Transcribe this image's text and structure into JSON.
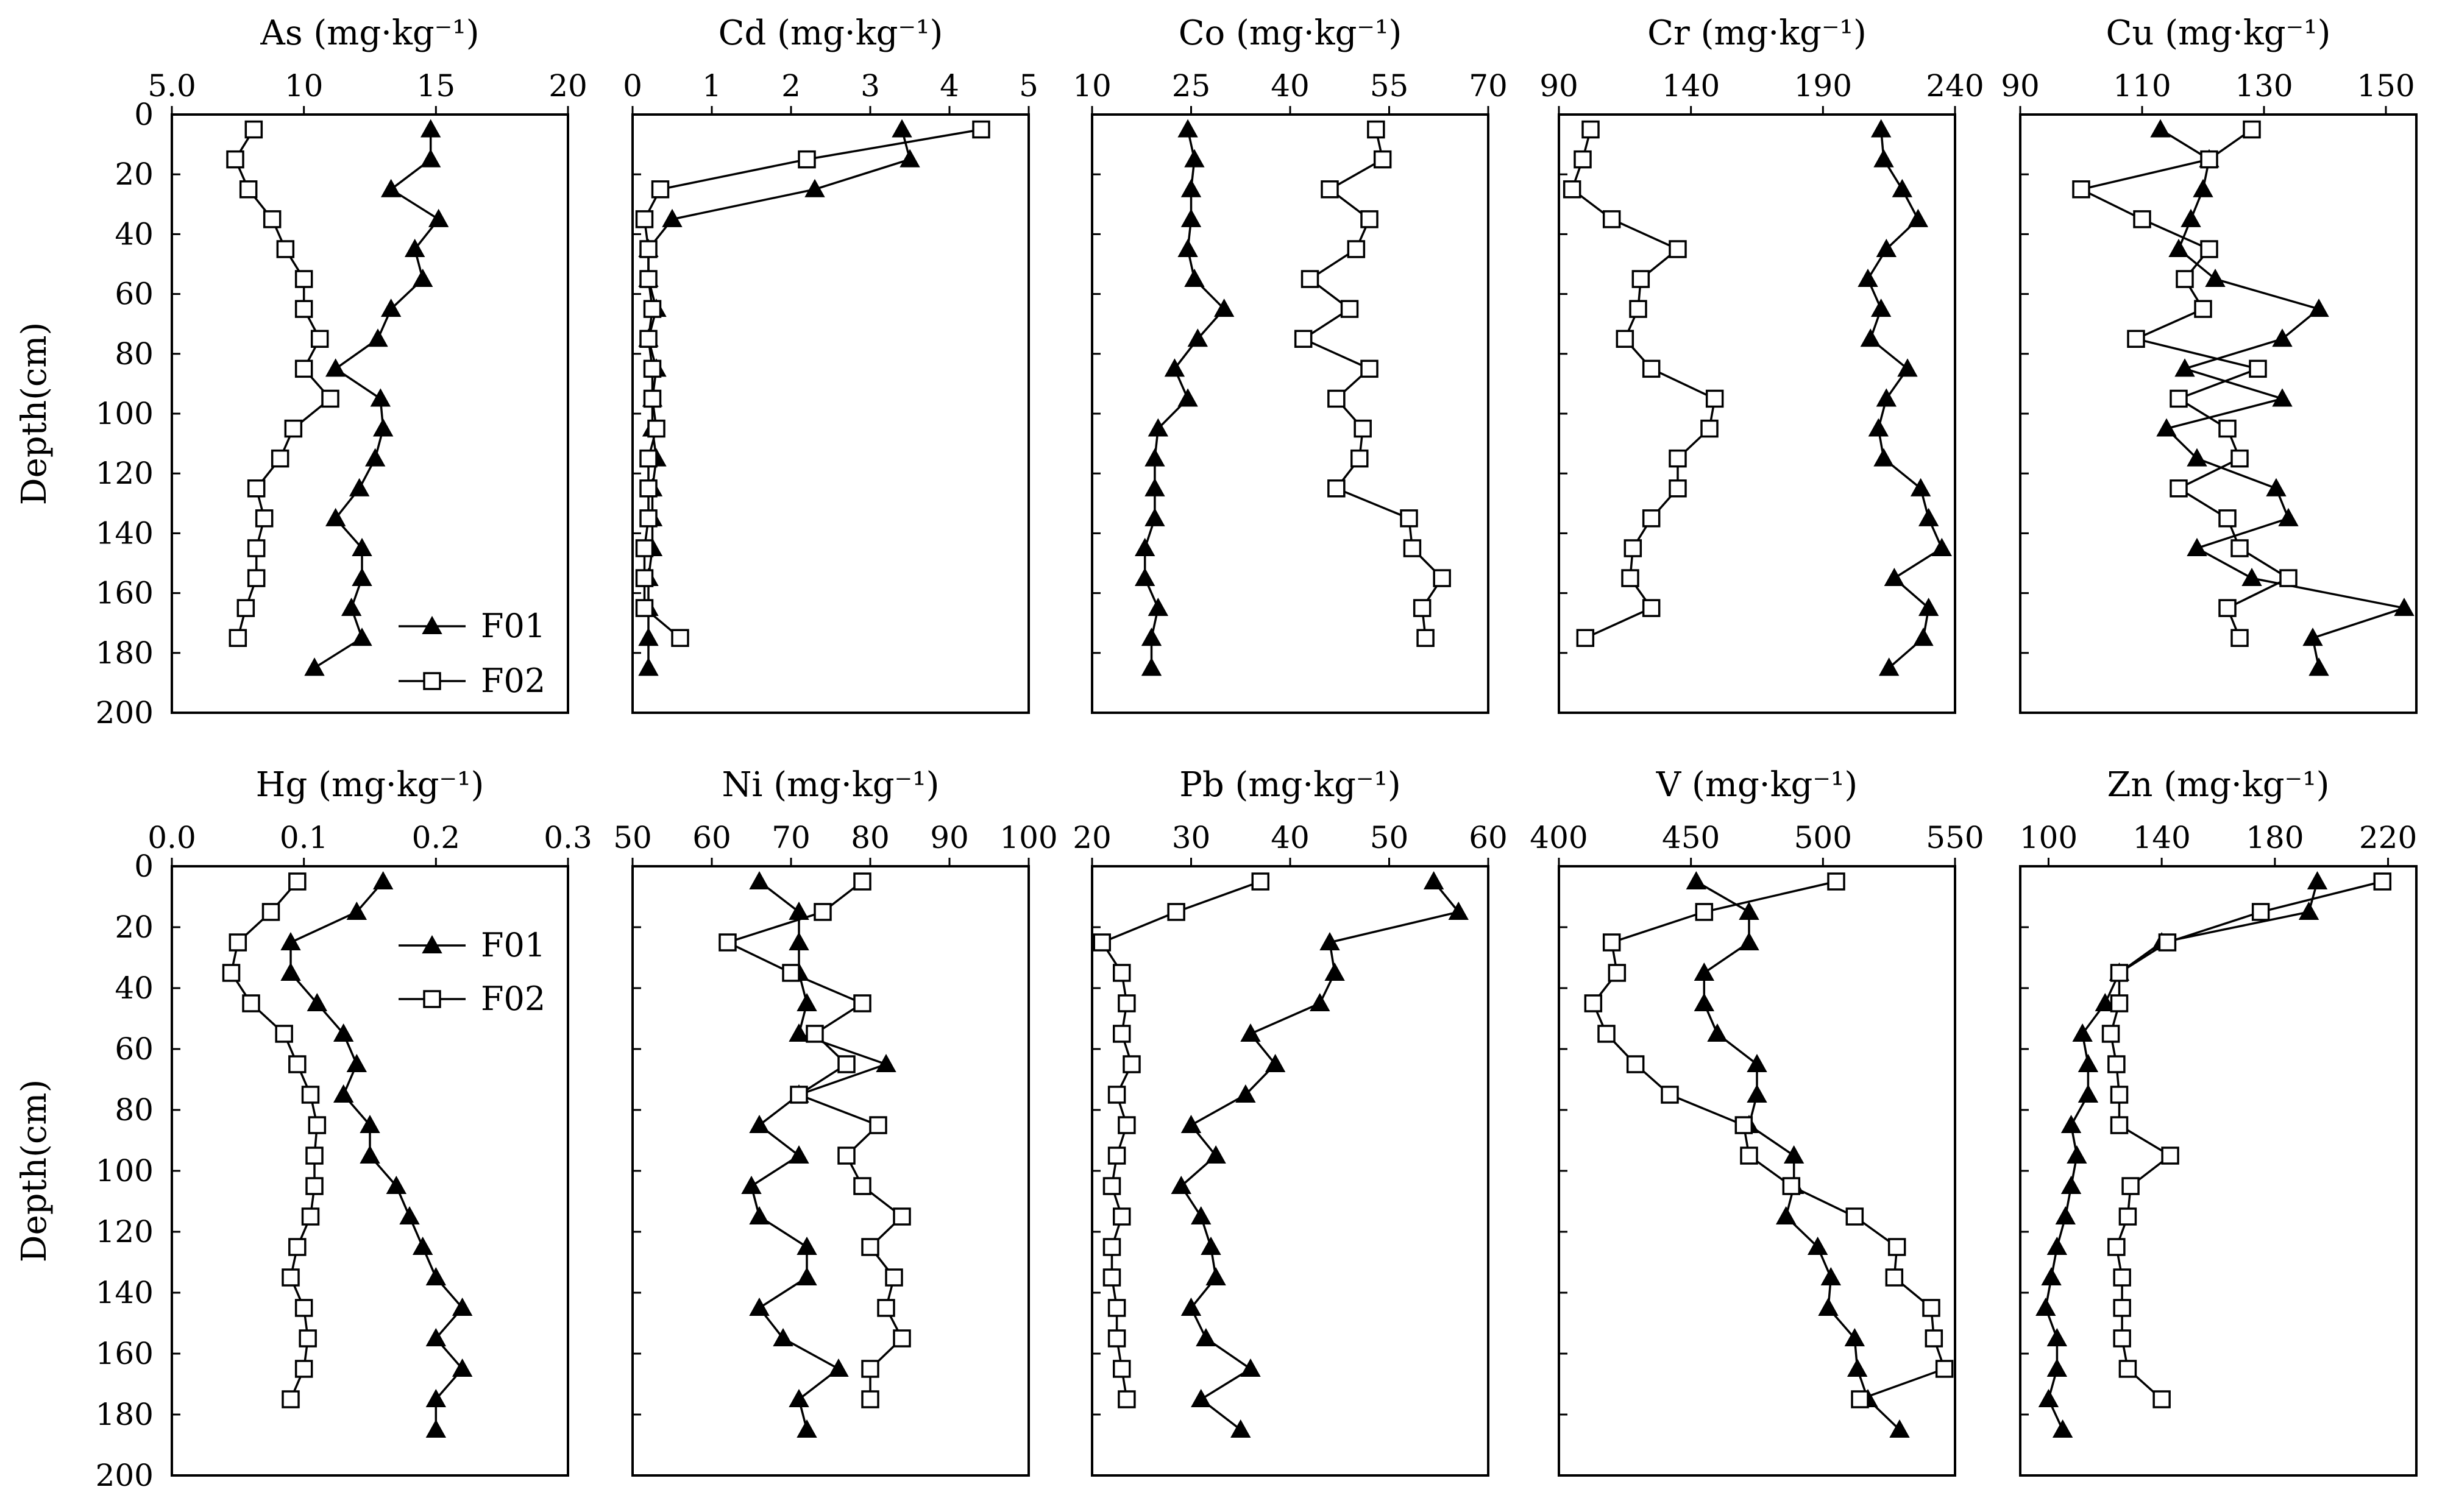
{
  "legend": {
    "entries": [
      {
        "name": "F01",
        "marker": "filled-triangle"
      },
      {
        "name": "F02",
        "marker": "open-square"
      }
    ]
  },
  "chart_data": [
    {
      "type": "line",
      "title": "As (mg·kg⁻¹)",
      "ylabel": "Depth(cm)",
      "xlim": [
        5,
        20
      ],
      "ylim": [
        0,
        200
      ],
      "xticks": [
        "5.0",
        "10",
        "15",
        "20"
      ],
      "yticks": [
        "0",
        "20",
        "40",
        "60",
        "80",
        "100",
        "120",
        "140",
        "160",
        "180",
        "200"
      ],
      "legend_position": "bottom-right",
      "series": [
        {
          "name": "F01",
          "marker": "triangle",
          "x": [
            14.8,
            14.8,
            13.3,
            15.1,
            14.2,
            14.5,
            13.3,
            12.8,
            11.2,
            12.9,
            13.0,
            12.7,
            12.1,
            11.2,
            12.2,
            12.2,
            11.8,
            12.2,
            10.4
          ],
          "y": [
            5,
            15,
            25,
            35,
            45,
            55,
            65,
            75,
            85,
            95,
            105,
            115,
            125,
            135,
            145,
            155,
            165,
            175,
            185
          ]
        },
        {
          "name": "F02",
          "marker": "square",
          "x": [
            8.1,
            7.4,
            7.9,
            8.8,
            9.3,
            10.0,
            10.0,
            10.6,
            10.0,
            11.0,
            9.6,
            9.1,
            8.2,
            8.5,
            8.2,
            8.2,
            7.8,
            7.5
          ],
          "y": [
            5,
            15,
            25,
            35,
            45,
            55,
            65,
            75,
            85,
            95,
            105,
            115,
            125,
            135,
            145,
            155,
            165,
            175
          ]
        }
      ]
    },
    {
      "type": "line",
      "title": "Cd (mg·kg⁻¹)",
      "ylabel": "",
      "xlim": [
        0,
        5
      ],
      "ylim": [
        0,
        200
      ],
      "xticks": [
        "0",
        "1",
        "2",
        "3",
        "4",
        "5"
      ],
      "yticks": [],
      "series": [
        {
          "name": "F01",
          "marker": "triangle",
          "x": [
            3.4,
            3.5,
            2.3,
            0.5,
            0.2,
            0.2,
            0.3,
            0.2,
            0.3,
            0.25,
            0.25,
            0.3,
            0.25,
            0.25,
            0.25,
            0.2,
            0.2,
            0.2,
            0.2
          ],
          "y": [
            5,
            15,
            25,
            35,
            45,
            55,
            65,
            75,
            85,
            95,
            105,
            115,
            125,
            135,
            145,
            155,
            165,
            175,
            185
          ]
        },
        {
          "name": "F02",
          "marker": "square",
          "x": [
            4.4,
            2.2,
            0.35,
            0.15,
            0.2,
            0.2,
            0.25,
            0.2,
            0.25,
            0.25,
            0.3,
            0.2,
            0.2,
            0.2,
            0.15,
            0.15,
            0.15,
            0.6
          ],
          "y": [
            5,
            15,
            25,
            35,
            45,
            55,
            65,
            75,
            85,
            95,
            105,
            115,
            125,
            135,
            145,
            155,
            165,
            175
          ]
        }
      ]
    },
    {
      "type": "line",
      "title": "Co (mg·kg⁻¹)",
      "ylabel": "",
      "xlim": [
        10,
        70
      ],
      "ylim": [
        0,
        200
      ],
      "xticks": [
        "10",
        "25",
        "40",
        "55",
        "70"
      ],
      "yticks": [],
      "series": [
        {
          "name": "F01",
          "marker": "triangle",
          "x": [
            24.5,
            25.5,
            25,
            25,
            24.5,
            25.5,
            30,
            26,
            22.5,
            24.5,
            20,
            19.5,
            19.5,
            19.5,
            18,
            18,
            20,
            19,
            19
          ],
          "y": [
            5,
            15,
            25,
            35,
            45,
            55,
            65,
            75,
            85,
            95,
            105,
            115,
            125,
            135,
            145,
            155,
            165,
            175,
            185
          ]
        },
        {
          "name": "F02",
          "marker": "square",
          "x": [
            53,
            54,
            46,
            52,
            50,
            43,
            49,
            42,
            52,
            47,
            51,
            50.5,
            47,
            58,
            58.5,
            63,
            60,
            60.5
          ],
          "y": [
            5,
            15,
            25,
            35,
            45,
            55,
            65,
            75,
            85,
            95,
            105,
            115,
            125,
            135,
            145,
            155,
            165,
            175
          ]
        }
      ]
    },
    {
      "type": "line",
      "title": "Cr (mg·kg⁻¹)",
      "ylabel": "",
      "xlim": [
        90,
        240
      ],
      "ylim": [
        0,
        200
      ],
      "xticks": [
        "90",
        "140",
        "190",
        "240"
      ],
      "yticks": [],
      "series": [
        {
          "name": "F01",
          "marker": "triangle",
          "x": [
            212,
            213,
            220,
            226,
            214,
            207,
            212,
            208,
            222,
            214,
            211,
            213,
            227,
            230,
            235,
            217,
            230,
            228,
            215
          ],
          "y": [
            5,
            15,
            25,
            35,
            45,
            55,
            65,
            75,
            85,
            95,
            105,
            115,
            125,
            135,
            145,
            155,
            165,
            175,
            185
          ]
        },
        {
          "name": "F02",
          "marker": "square",
          "x": [
            102,
            99,
            95,
            110,
            135,
            121,
            120,
            115,
            125,
            149,
            147,
            135,
            135,
            125,
            118,
            117,
            125,
            100
          ],
          "y": [
            5,
            15,
            25,
            35,
            45,
            55,
            65,
            75,
            85,
            95,
            105,
            115,
            125,
            135,
            145,
            155,
            165,
            175
          ]
        }
      ]
    },
    {
      "type": "line",
      "title": "Cu (mg·kg⁻¹)",
      "ylabel": "",
      "xlim": [
        90,
        155
      ],
      "ylim": [
        0,
        200
      ],
      "xticks": [
        "90",
        "110",
        "130",
        "150"
      ],
      "yticks": [],
      "series": [
        {
          "name": "F01",
          "marker": "triangle",
          "x": [
            113,
            121,
            120,
            118,
            116,
            122,
            139,
            133,
            117,
            133,
            114,
            119,
            132,
            134,
            119,
            128,
            153,
            138,
            139
          ],
          "y": [
            5,
            15,
            25,
            35,
            45,
            55,
            65,
            75,
            85,
            95,
            105,
            115,
            125,
            135,
            145,
            155,
            165,
            175,
            185
          ]
        },
        {
          "name": "F02",
          "marker": "square",
          "x": [
            128,
            121,
            100,
            110,
            121,
            117,
            120,
            109,
            129,
            116,
            124,
            126,
            116,
            124,
            126,
            134,
            124,
            126
          ],
          "y": [
            5,
            15,
            25,
            35,
            45,
            55,
            65,
            75,
            85,
            95,
            105,
            115,
            125,
            135,
            145,
            155,
            165,
            175
          ]
        }
      ]
    },
    {
      "type": "line",
      "title": "Hg (mg·kg⁻¹)",
      "ylabel": "Depth(cm)",
      "xlim": [
        0,
        0.3
      ],
      "ylim": [
        0,
        200
      ],
      "xticks": [
        "0.0",
        "0.1",
        "0.2",
        "0.3"
      ],
      "yticks": [
        "0",
        "20",
        "40",
        "60",
        "80",
        "100",
        "120",
        "140",
        "160",
        "180",
        "200"
      ],
      "legend_position": "top-right",
      "series": [
        {
          "name": "F01",
          "marker": "triangle",
          "x": [
            0.16,
            0.14,
            0.09,
            0.09,
            0.11,
            0.13,
            0.14,
            0.13,
            0.15,
            0.15,
            0.17,
            0.18,
            0.19,
            0.2,
            0.22,
            0.2,
            0.22,
            0.2,
            0.2
          ],
          "y": [
            5,
            15,
            25,
            35,
            45,
            55,
            65,
            75,
            85,
            95,
            105,
            115,
            125,
            135,
            145,
            155,
            165,
            175,
            185
          ]
        },
        {
          "name": "F02",
          "marker": "square",
          "x": [
            0.095,
            0.075,
            0.05,
            0.045,
            0.06,
            0.085,
            0.095,
            0.105,
            0.11,
            0.108,
            0.108,
            0.105,
            0.095,
            0.09,
            0.1,
            0.103,
            0.1,
            0.09
          ],
          "y": [
            5,
            15,
            25,
            35,
            45,
            55,
            65,
            75,
            85,
            95,
            105,
            115,
            125,
            135,
            145,
            155,
            165,
            175
          ]
        }
      ]
    },
    {
      "type": "line",
      "title": "Ni (mg·kg⁻¹)",
      "ylabel": "",
      "xlim": [
        50,
        100
      ],
      "ylim": [
        0,
        200
      ],
      "xticks": [
        "50",
        "60",
        "70",
        "80",
        "90",
        "100"
      ],
      "yticks": [],
      "series": [
        {
          "name": "F01",
          "marker": "triangle",
          "x": [
            66,
            71,
            71,
            71,
            72,
            71,
            82,
            71,
            66,
            71,
            65,
            66,
            72,
            72,
            66,
            69,
            76,
            71,
            72
          ],
          "y": [
            5,
            15,
            25,
            35,
            45,
            55,
            65,
            75,
            85,
            95,
            105,
            115,
            125,
            135,
            145,
            155,
            165,
            175,
            185
          ]
        },
        {
          "name": "F02",
          "marker": "square",
          "x": [
            79,
            74,
            62,
            70,
            79,
            73,
            77,
            71,
            81,
            77,
            79,
            84,
            80,
            83,
            82,
            84,
            80,
            80
          ],
          "y": [
            5,
            15,
            25,
            35,
            45,
            55,
            65,
            75,
            85,
            95,
            105,
            115,
            125,
            135,
            145,
            155,
            165,
            175
          ]
        }
      ]
    },
    {
      "type": "line",
      "title": "Pb (mg·kg⁻¹)",
      "ylabel": "",
      "xlim": [
        20,
        60
      ],
      "ylim": [
        0,
        200
      ],
      "xticks": [
        "20",
        "30",
        "40",
        "50",
        "60"
      ],
      "yticks": [],
      "series": [
        {
          "name": "F01",
          "marker": "triangle",
          "x": [
            54.5,
            57,
            44,
            44.5,
            43,
            36,
            38.5,
            35.5,
            30,
            32.5,
            29,
            31,
            32,
            32.5,
            30,
            31.5,
            36,
            31,
            35
          ],
          "y": [
            5,
            15,
            25,
            35,
            45,
            55,
            65,
            75,
            85,
            95,
            105,
            115,
            125,
            135,
            145,
            155,
            165,
            175,
            185
          ]
        },
        {
          "name": "F02",
          "marker": "square",
          "x": [
            37,
            28.5,
            21,
            23,
            23.5,
            23,
            24,
            22.5,
            23.5,
            22.5,
            22,
            23,
            22,
            22,
            22.5,
            22.5,
            23,
            23.5
          ],
          "y": [
            5,
            15,
            25,
            35,
            45,
            55,
            65,
            75,
            85,
            95,
            105,
            115,
            125,
            135,
            145,
            155,
            165,
            175
          ]
        }
      ]
    },
    {
      "type": "line",
      "title": "V (mg·kg⁻¹)",
      "ylabel": "",
      "xlim": [
        400,
        550
      ],
      "ylim": [
        0,
        200
      ],
      "xticks": [
        "400",
        "450",
        "500",
        "550"
      ],
      "yticks": [],
      "series": [
        {
          "name": "F01",
          "marker": "triangle",
          "x": [
            452,
            472,
            472,
            455,
            455,
            460,
            475,
            475,
            472,
            489,
            489,
            486,
            498,
            503,
            502,
            512,
            513,
            517,
            529
          ],
          "y": [
            5,
            15,
            25,
            35,
            45,
            55,
            65,
            75,
            85,
            95,
            105,
            115,
            125,
            135,
            145,
            155,
            165,
            175,
            185
          ]
        },
        {
          "name": "F02",
          "marker": "square",
          "x": [
            505,
            455,
            420,
            422,
            413,
            418,
            429,
            442,
            470,
            472,
            488,
            512,
            528,
            527,
            541,
            542,
            546,
            514
          ],
          "y": [
            5,
            15,
            25,
            35,
            45,
            55,
            65,
            75,
            85,
            95,
            105,
            115,
            125,
            135,
            145,
            155,
            165,
            175
          ]
        }
      ]
    },
    {
      "type": "line",
      "title": "Zn (mg·kg⁻¹)",
      "ylabel": "",
      "xlim": [
        90,
        230
      ],
      "ylim": [
        0,
        200
      ],
      "xticks": [
        "100",
        "140",
        "180",
        "220"
      ],
      "yticks": [],
      "series": [
        {
          "name": "F01",
          "marker": "triangle",
          "x": [
            195,
            192,
            140,
            125,
            120,
            112,
            114,
            114,
            108,
            110,
            108,
            106,
            103,
            101,
            99,
            103,
            103,
            100,
            105
          ],
          "y": [
            5,
            15,
            25,
            35,
            45,
            55,
            65,
            75,
            85,
            95,
            105,
            115,
            125,
            135,
            145,
            155,
            165,
            175,
            185
          ]
        },
        {
          "name": "F02",
          "marker": "square",
          "x": [
            218,
            175,
            142,
            125,
            125,
            122,
            124,
            125,
            125,
            143,
            129,
            128,
            124,
            126,
            126,
            126,
            128,
            140
          ],
          "y": [
            5,
            15,
            25,
            35,
            45,
            55,
            65,
            75,
            85,
            95,
            105,
            115,
            125,
            135,
            145,
            155,
            165,
            175
          ]
        }
      ]
    }
  ]
}
